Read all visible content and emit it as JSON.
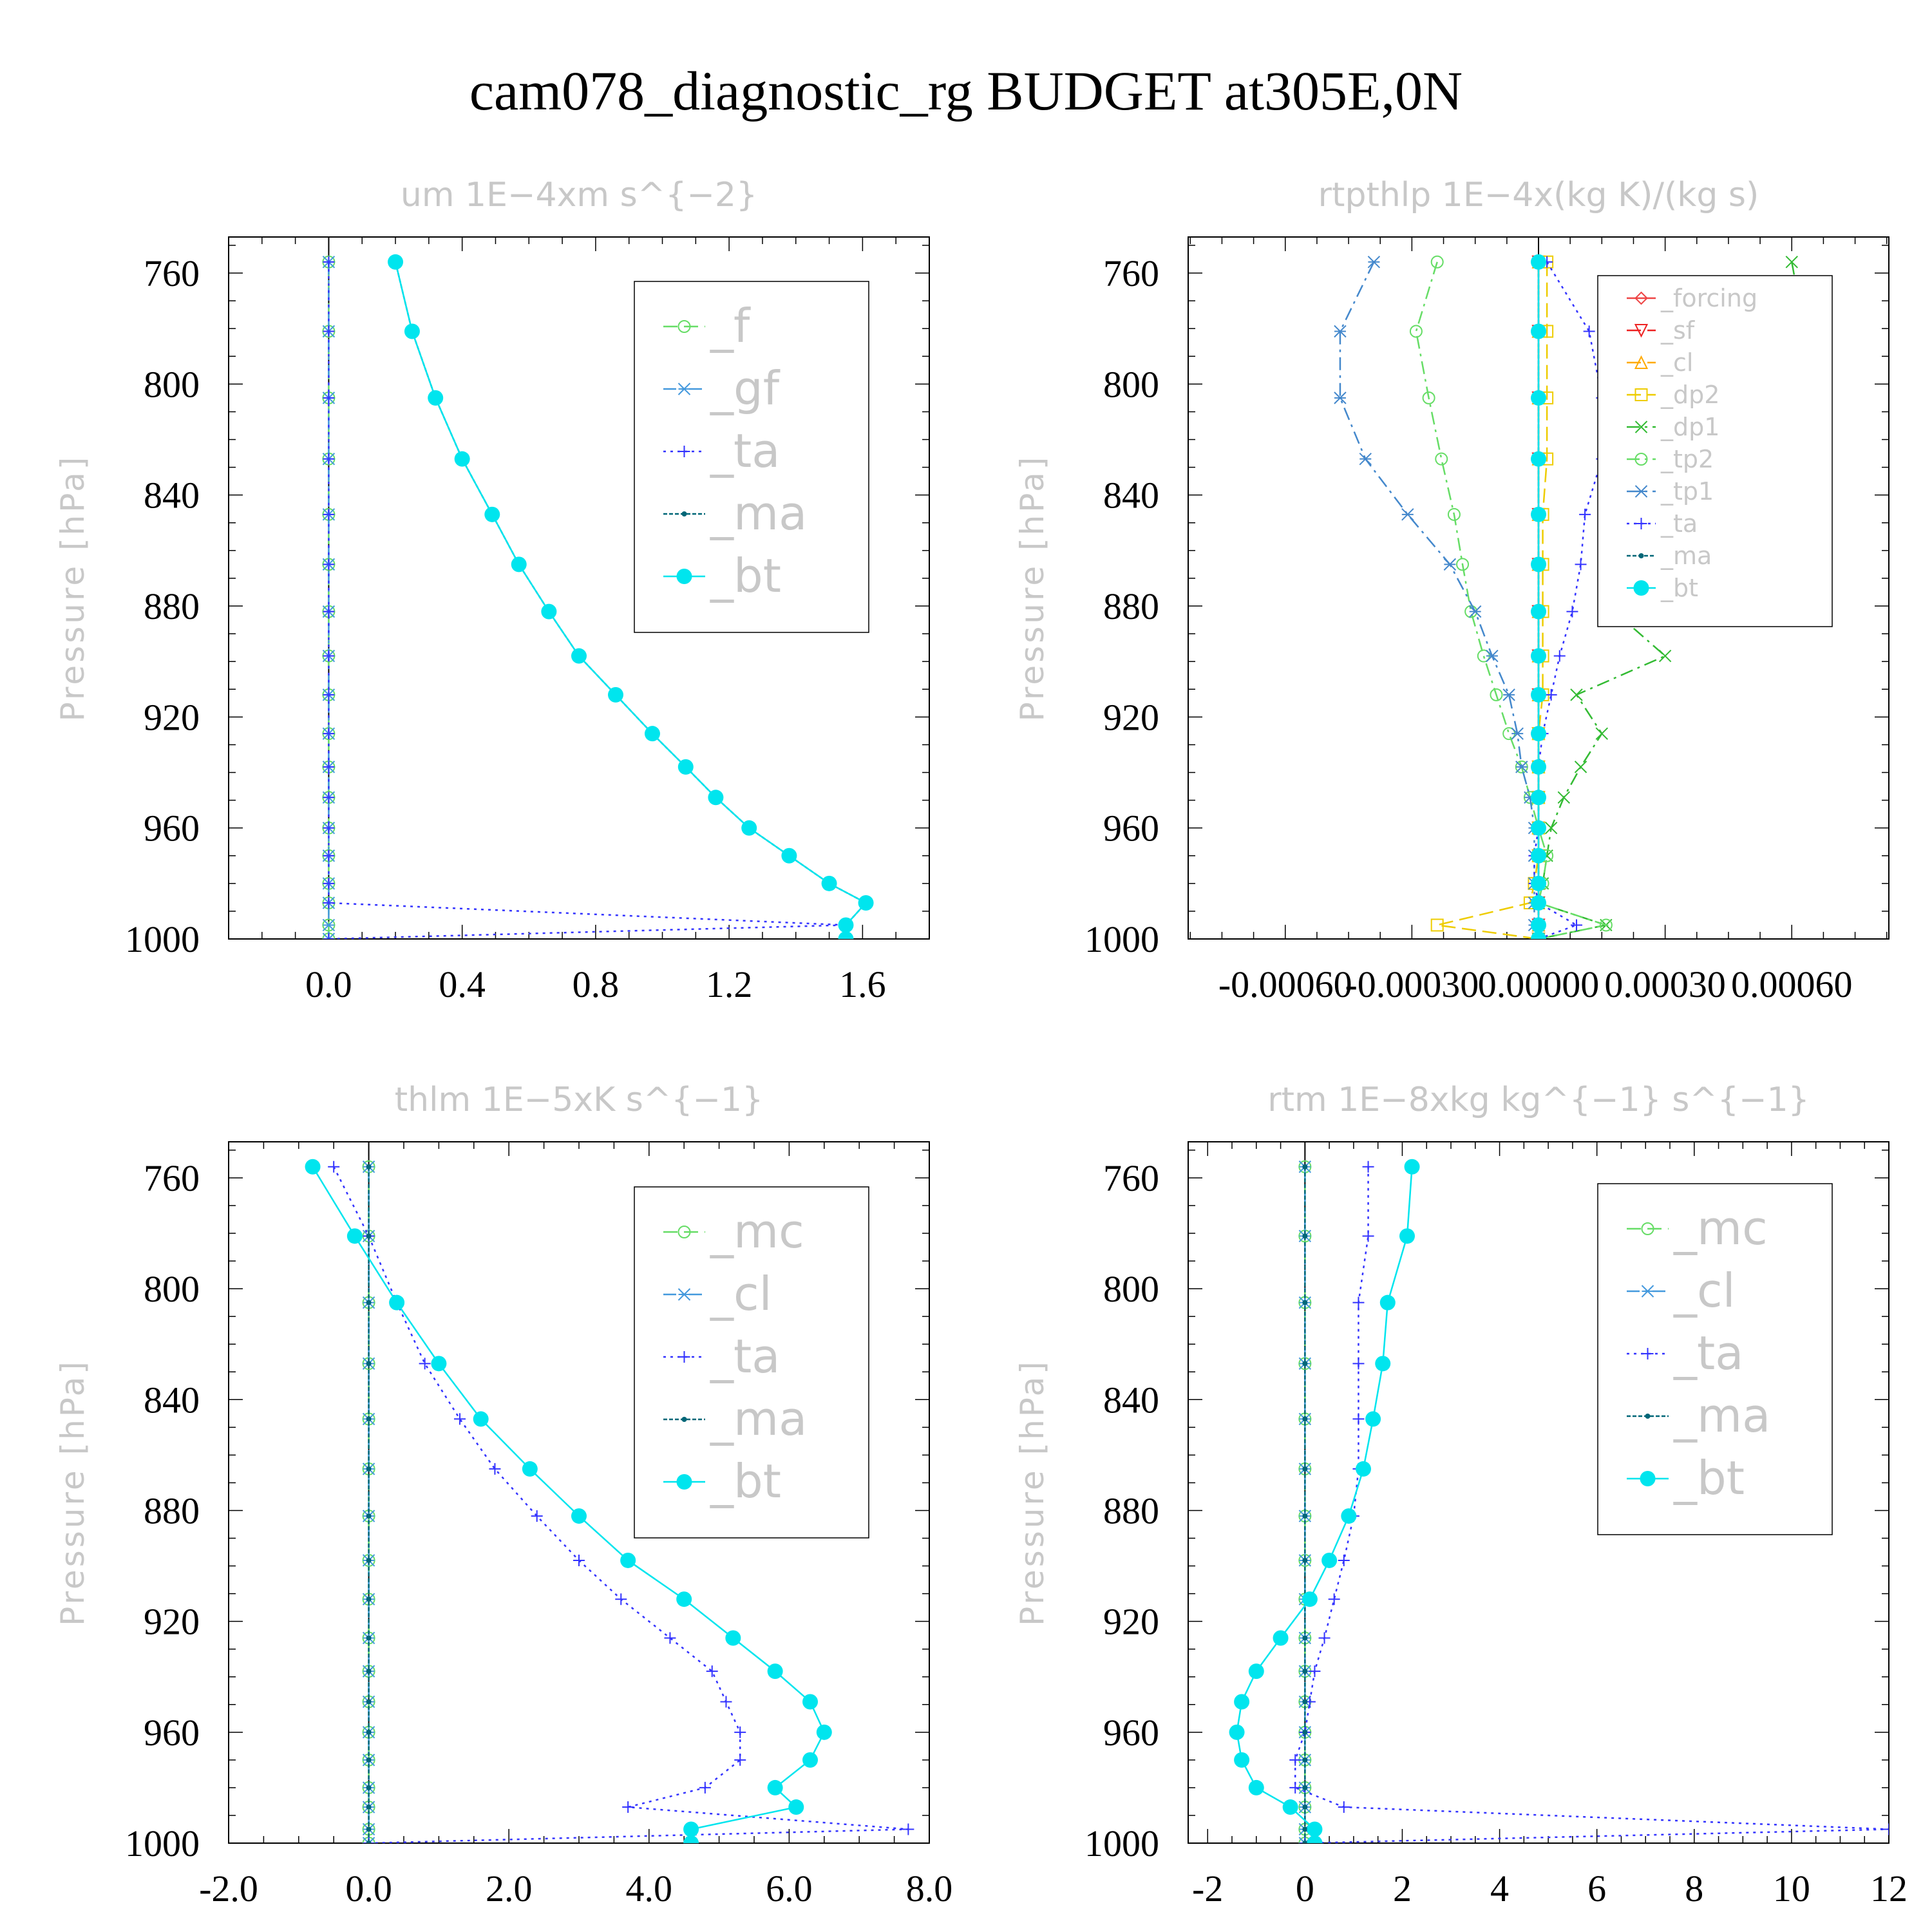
{
  "figure": {
    "title": "cam078_diagnostic_rg  BUDGET at305E,0N"
  },
  "chart_data": [
    {
      "type": "line",
      "title": "um   1E−4xm s^{−2}",
      "ylabel": "Pressure [hPa]",
      "xlim": [
        -0.3,
        1.8
      ],
      "ylim": [
        1000,
        747
      ],
      "xticks": [
        "0.0",
        "0.4",
        "0.8",
        "1.2",
        "1.6"
      ],
      "xtick_values": [
        0.0,
        0.4,
        0.8,
        1.2,
        1.6
      ],
      "yticks": [
        "760",
        "800",
        "840",
        "880",
        "920",
        "960",
        "1000"
      ],
      "ytick_values": [
        760,
        800,
        840,
        880,
        920,
        960,
        1000
      ],
      "legend_position": "top-right",
      "pressure": [
        756,
        781,
        805,
        827,
        847,
        865,
        882,
        898,
        912,
        926,
        938,
        949,
        960,
        970,
        980,
        987,
        995,
        1000
      ],
      "series": [
        {
          "name": "_f",
          "color": "#66dd66",
          "marker": "circle",
          "dash": "dash",
          "values": [
            0,
            0,
            0,
            0,
            0,
            0,
            0,
            0,
            0,
            0,
            0,
            0,
            0,
            0,
            0,
            0,
            0,
            0
          ]
        },
        {
          "name": "_gf",
          "color": "#4499dd",
          "marker": "star",
          "dash": "dashdot",
          "values": [
            0,
            0,
            0,
            0,
            0,
            0,
            0,
            0,
            0,
            0,
            0,
            0,
            0,
            0,
            0,
            0,
            0,
            0
          ]
        },
        {
          "name": "_ta",
          "color": "#3333ff",
          "marker": "plus",
          "dash": "dot",
          "values": [
            0,
            0,
            0,
            0,
            0,
            0,
            0,
            0,
            0,
            0,
            0,
            0,
            0,
            0,
            0,
            0,
            1.55,
            0
          ]
        },
        {
          "name": "_ma",
          "color": "#006677",
          "marker": "dot",
          "dash": "dense",
          "values": [
            0.2,
            0.25,
            0.32,
            0.4,
            0.49,
            0.57,
            0.66,
            0.75,
            0.86,
            0.97,
            1.07,
            1.16,
            1.26,
            1.38,
            1.5,
            1.61,
            1.55,
            1.55
          ]
        },
        {
          "name": "_bt",
          "color": "#00e5ee",
          "marker": "bigdot",
          "dash": "solid",
          "values": [
            0.2,
            0.25,
            0.32,
            0.4,
            0.49,
            0.57,
            0.66,
            0.75,
            0.86,
            0.97,
            1.07,
            1.16,
            1.26,
            1.38,
            1.5,
            1.61,
            1.55,
            1.55
          ]
        }
      ]
    },
    {
      "type": "line",
      "title": "rtpthlp   1E−4x(kg K)/(kg s)",
      "ylabel": "Pressure [hPa]",
      "xlim": [
        -0.00083,
        0.00083
      ],
      "ylim": [
        1000,
        747
      ],
      "xticks": [
        "-0.00060",
        "-0.00030",
        "0.00000",
        "0.00030",
        "0.00060"
      ],
      "xtick_values": [
        -0.0006,
        -0.0003,
        0.0,
        0.0003,
        0.0006
      ],
      "yticks": [
        "760",
        "800",
        "840",
        "880",
        "920",
        "960",
        "1000"
      ],
      "ytick_values": [
        760,
        800,
        840,
        880,
        920,
        960,
        1000
      ],
      "legend_position": "top-right",
      "pressure": [
        756,
        781,
        805,
        827,
        847,
        865,
        882,
        898,
        912,
        926,
        938,
        949,
        960,
        970,
        980,
        987,
        995,
        1000
      ],
      "series": [
        {
          "name": "_forcing",
          "color": "#ee4444",
          "marker": "diamond",
          "dash": "solid",
          "values": [
            0,
            0,
            0,
            0,
            0,
            0,
            0,
            0,
            0,
            0,
            0,
            0,
            0,
            0,
            0,
            0,
            0,
            0
          ]
        },
        {
          "name": "_sf",
          "color": "#ee2222",
          "marker": "tri-down",
          "dash": "dash",
          "values": [
            0,
            0,
            0,
            0,
            0,
            0,
            0,
            0,
            0,
            0,
            0,
            0,
            0,
            0,
            0,
            0,
            0,
            0
          ]
        },
        {
          "name": "_cl",
          "color": "#ffaa00",
          "marker": "tri-up",
          "dash": "dash",
          "values": [
            0,
            0,
            0,
            0,
            0,
            0,
            0,
            0,
            0,
            0,
            0,
            0,
            0,
            0,
            0,
            0,
            0,
            0
          ]
        },
        {
          "name": "_dp2",
          "color": "#eecc00",
          "marker": "square",
          "dash": "dash",
          "values": [
            2e-05,
            2e-05,
            2e-05,
            2e-05,
            1e-05,
            1e-05,
            1e-05,
            1e-05,
            1e-05,
            0.0,
            0.0,
            0.0,
            0.0,
            0.0,
            -1e-05,
            -2e-05,
            -0.00024,
            0
          ]
        },
        {
          "name": "_dp1",
          "color": "#33bb33",
          "marker": "cross",
          "dash": "dashdot",
          "values": [
            0.0006,
            0.00063,
            0.00057,
            0.00043,
            0.00033,
            0.00025,
            0.00018,
            0.0003,
            9e-05,
            0.00015,
            0.0001,
            6e-05,
            3e-05,
            2e-05,
            1e-05,
            0.0,
            0.00016,
            0
          ]
        },
        {
          "name": "_tp2",
          "color": "#66dd66",
          "marker": "circle",
          "dash": "dashdot",
          "values": [
            -0.00024,
            -0.00029,
            -0.00026,
            -0.00023,
            -0.0002,
            -0.00018,
            -0.00016,
            -0.00013,
            -0.0001,
            -7e-05,
            -4e-05,
            -2e-05,
            0.0,
            2e-05,
            1e-05,
            0.0,
            0.00016,
            0
          ]
        },
        {
          "name": "_tp1",
          "color": "#4488cc",
          "marker": "star",
          "dash": "dashdot",
          "values": [
            -0.00039,
            -0.00047,
            -0.00047,
            -0.00041,
            -0.00031,
            -0.00021,
            -0.00015,
            -0.00011,
            -7e-05,
            -5e-05,
            -4e-05,
            -2e-05,
            -1e-05,
            -1e-05,
            -1e-05,
            -1e-05,
            -1e-05,
            0
          ]
        },
        {
          "name": "_ta",
          "color": "#3333ff",
          "marker": "plus",
          "dash": "dot",
          "values": [
            2e-05,
            0.00012,
            0.00015,
            0.00015,
            0.00011,
            0.0001,
            8e-05,
            5e-05,
            3e-05,
            1e-05,
            0.0,
            0.0,
            0.0,
            -1e-05,
            -1e-05,
            0.0,
            9e-05,
            0
          ]
        },
        {
          "name": "_ma",
          "color": "#006677",
          "marker": "dot",
          "dash": "dense",
          "values": [
            0,
            0,
            0,
            0,
            0,
            0,
            0,
            0,
            0,
            0,
            0,
            0,
            0,
            0,
            0,
            0,
            0,
            0
          ]
        },
        {
          "name": "_bt",
          "color": "#00e5ee",
          "marker": "bigdot",
          "dash": "solid",
          "values": [
            0,
            0,
            0,
            0,
            0,
            0,
            0,
            0,
            0,
            0,
            0,
            0,
            0,
            0,
            0,
            0,
            0,
            0
          ]
        }
      ]
    },
    {
      "type": "line",
      "title": "thlm   1E−5xK s^{−1}",
      "ylabel": "Pressure [hPa]",
      "xlim": [
        -2.0,
        8.0
      ],
      "ylim": [
        1000,
        747
      ],
      "xticks": [
        "-2.0",
        "0.0",
        "2.0",
        "4.0",
        "6.0",
        "8.0"
      ],
      "xtick_values": [
        -2.0,
        0.0,
        2.0,
        4.0,
        6.0,
        8.0
      ],
      "yticks": [
        "760",
        "800",
        "840",
        "880",
        "920",
        "960",
        "1000"
      ],
      "ytick_values": [
        760,
        800,
        840,
        880,
        920,
        960,
        1000
      ],
      "legend_position": "top-right",
      "pressure": [
        756,
        781,
        805,
        827,
        847,
        865,
        882,
        898,
        912,
        926,
        938,
        949,
        960,
        970,
        980,
        987,
        995,
        1000
      ],
      "series": [
        {
          "name": "_mc",
          "color": "#66dd66",
          "marker": "circle",
          "dash": "dash",
          "values": [
            0,
            0,
            0,
            0,
            0,
            0,
            0,
            0,
            0,
            0,
            0,
            0,
            0,
            0,
            0,
            0,
            0,
            0
          ]
        },
        {
          "name": "_cl",
          "color": "#4499dd",
          "marker": "star",
          "dash": "dashdot",
          "values": [
            0,
            0,
            0,
            0,
            0,
            0,
            0,
            0,
            0,
            0,
            0,
            0,
            0,
            0,
            0,
            0,
            0,
            0
          ]
        },
        {
          "name": "_ta",
          "color": "#3333ff",
          "marker": "plus",
          "dash": "dot",
          "values": [
            -0.5,
            0.0,
            0.4,
            0.8,
            1.3,
            1.8,
            2.4,
            3.0,
            3.6,
            4.3,
            4.9,
            5.1,
            5.3,
            5.3,
            4.8,
            3.7,
            7.7,
            0
          ]
        },
        {
          "name": "_ma",
          "color": "#006677",
          "marker": "dot",
          "dash": "dense",
          "values": [
            0,
            0,
            0,
            0,
            0,
            0,
            0,
            0,
            0,
            0,
            0,
            0,
            0,
            0,
            0,
            0,
            0,
            0
          ]
        },
        {
          "name": "_bt",
          "color": "#00e5ee",
          "marker": "bigdot",
          "dash": "solid",
          "values": [
            -0.8,
            -0.2,
            0.4,
            1.0,
            1.6,
            2.3,
            3.0,
            3.7,
            4.5,
            5.2,
            5.8,
            6.3,
            6.5,
            6.3,
            5.8,
            6.1,
            4.6,
            4.6
          ]
        }
      ]
    },
    {
      "type": "line",
      "title": "rtm   1E−8xkg kg^{−1} s^{−1}",
      "ylabel": "Pressure [hPa]",
      "xlim": [
        -2.4,
        12
      ],
      "ylim": [
        1000,
        747
      ],
      "xticks": [
        "-2",
        "0",
        "2",
        "4",
        "6",
        "8",
        "10",
        "12"
      ],
      "xtick_values": [
        -2,
        0,
        2,
        4,
        6,
        8,
        10,
        12
      ],
      "yticks": [
        "760",
        "800",
        "840",
        "880",
        "920",
        "960",
        "1000"
      ],
      "ytick_values": [
        760,
        800,
        840,
        880,
        920,
        960,
        1000
      ],
      "legend_position": "top-right",
      "pressure": [
        756,
        781,
        805,
        827,
        847,
        865,
        882,
        898,
        912,
        926,
        938,
        949,
        960,
        970,
        980,
        987,
        995,
        1000
      ],
      "series": [
        {
          "name": "_mc",
          "color": "#66dd66",
          "marker": "circle",
          "dash": "dash",
          "values": [
            0,
            0,
            0,
            0,
            0,
            0,
            0,
            0,
            0,
            0,
            0,
            0,
            0,
            0,
            0,
            0,
            0,
            0
          ]
        },
        {
          "name": "_cl",
          "color": "#4499dd",
          "marker": "star",
          "dash": "dashdot",
          "values": [
            0,
            0,
            0,
            0,
            0,
            0,
            0,
            0,
            0,
            0,
            0,
            0,
            0,
            0,
            0,
            0,
            0,
            0
          ]
        },
        {
          "name": "_ta",
          "color": "#3333ff",
          "marker": "plus",
          "dash": "dot",
          "values": [
            1.3,
            1.3,
            1.1,
            1.1,
            1.1,
            1.1,
            1.0,
            0.8,
            0.6,
            0.4,
            0.2,
            0.1,
            0.0,
            -0.2,
            -0.2,
            0.8,
            12,
            0
          ]
        },
        {
          "name": "_ma",
          "color": "#006677",
          "marker": "dot",
          "dash": "dense",
          "values": [
            0,
            0,
            0,
            0,
            0,
            0,
            0,
            0,
            0,
            0,
            0,
            0,
            0,
            0,
            0,
            0,
            0,
            0
          ]
        },
        {
          "name": "_bt",
          "color": "#00e5ee",
          "marker": "bigdot",
          "dash": "solid",
          "values": [
            2.2,
            2.1,
            1.7,
            1.6,
            1.4,
            1.2,
            0.9,
            0.5,
            0.1,
            -0.5,
            -1.0,
            -1.3,
            -1.4,
            -1.3,
            -1.0,
            -0.3,
            0.2,
            0.2
          ]
        }
      ]
    }
  ]
}
